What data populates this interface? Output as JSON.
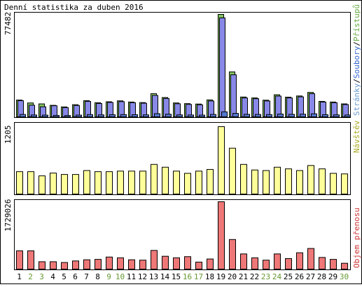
{
  "title": "Denní statistika za duben 2016",
  "days": [
    "1",
    "2",
    "3",
    "4",
    "5",
    "6",
    "7",
    "8",
    "9",
    "10",
    "11",
    "12",
    "13",
    "14",
    "15",
    "16",
    "17",
    "18",
    "19",
    "20",
    "21",
    "22",
    "23",
    "24",
    "25",
    "26",
    "27",
    "28",
    "29",
    "30"
  ],
  "weekend_days": [
    "2",
    "3",
    "9",
    "10",
    "16",
    "17",
    "23",
    "24",
    "30"
  ],
  "colors": {
    "weekend": "#669933",
    "weekday": "#000000",
    "pristupu": "#66aa44",
    "soubory": "#3366cc",
    "stranky": "#6699cc",
    "navstevy": "#aaaa22",
    "prenosy": "#cc3333"
  },
  "chart_data": [
    {
      "type": "bar",
      "ylabel_max": "77482",
      "ylim": [
        0,
        77482
      ],
      "legend": {
        "stranky": "Stránky",
        "sep1": "/",
        "soubory": "Soubory",
        "sep2": "/",
        "pristupu": "Přístupů"
      },
      "series": [
        {
          "name": "Přístupů",
          "color": "#80c060",
          "values": [
            12700,
            10500,
            9800,
            8700,
            7500,
            9200,
            12200,
            10700,
            11400,
            12100,
            11200,
            10800,
            17500,
            14600,
            10500,
            10000,
            9700,
            12800,
            77482,
            34000,
            15000,
            14300,
            12600,
            16700,
            14900,
            15800,
            18500,
            11700,
            11200,
            9800
          ]
        },
        {
          "name": "Soubory",
          "color": "#8888e8",
          "values": [
            12200,
            8800,
            7600,
            8400,
            7000,
            8600,
            11700,
            10100,
            10900,
            11500,
            10700,
            10300,
            16200,
            13900,
            9900,
            9400,
            9100,
            12000,
            74800,
            31800,
            14300,
            13700,
            12000,
            15700,
            14300,
            15100,
            17500,
            11200,
            10700,
            9300
          ]
        },
        {
          "name": "Stránky",
          "color": "#5577cc",
          "values": [
            1800,
            1400,
            1300,
            1100,
            1000,
            1300,
            1700,
            1500,
            1600,
            1700,
            1600,
            1500,
            2400,
            2000,
            1500,
            1400,
            1300,
            1800,
            3800,
            2600,
            1900,
            1800,
            1700,
            2100,
            1900,
            2000,
            2300,
            1600,
            1500,
            1400
          ]
        }
      ]
    },
    {
      "type": "bar",
      "ylabel_max": "1205",
      "ylim": [
        0,
        1205
      ],
      "legend": {
        "navstevy": "Návštěv"
      },
      "series": [
        {
          "name": "Návštěv",
          "color": "#ffff99",
          "values": [
            400,
            400,
            325,
            375,
            350,
            350,
            420,
            400,
            400,
            410,
            410,
            410,
            530,
            480,
            410,
            370,
            410,
            440,
            1205,
            820,
            530,
            430,
            420,
            480,
            450,
            420,
            510,
            450,
            370,
            360
          ]
        }
      ]
    },
    {
      "type": "bar",
      "ylabel_max": "1729026",
      "ylim": [
        0,
        1729026
      ],
      "legend": {
        "prenosy": "Objem přenosu"
      },
      "series": [
        {
          "name": "Objem přenosu",
          "color": "#ee7777",
          "values": [
            470000,
            470000,
            190000,
            190000,
            170000,
            210000,
            240000,
            250000,
            310000,
            290000,
            240000,
            230000,
            480000,
            330000,
            290000,
            320000,
            180000,
            260000,
            1729026,
            760000,
            390000,
            290000,
            230000,
            390000,
            270000,
            420000,
            530000,
            300000,
            250000,
            150000
          ]
        }
      ]
    }
  ]
}
